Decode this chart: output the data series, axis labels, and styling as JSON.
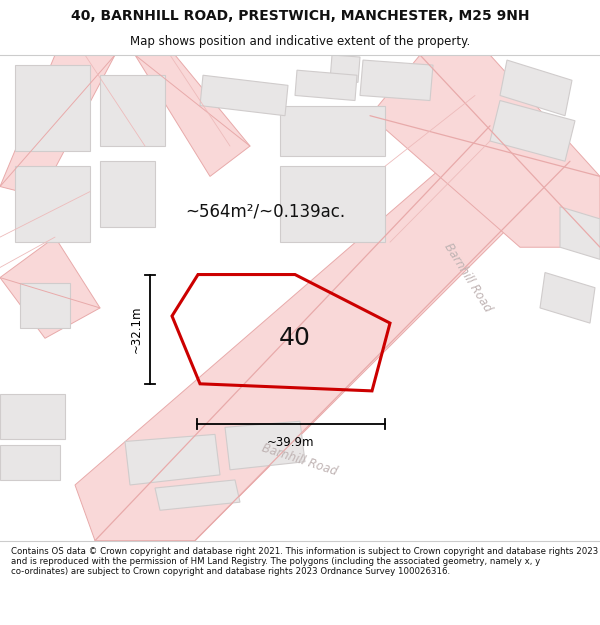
{
  "title_line1": "40, BARNHILL ROAD, PRESTWICH, MANCHESTER, M25 9NH",
  "title_line2": "Map shows position and indicative extent of the property.",
  "area_text": "~564m²/~0.139ac.",
  "label_40": "40",
  "dim_vertical": "~32.1m",
  "dim_horizontal": "~39.9m",
  "road_label_right": "Barnhill Road",
  "road_label_bottom": "Barnhill Road",
  "footer_text": "Contains OS data © Crown copyright and database right 2021. This information is subject to Crown copyright and database rights 2023 and is reproduced with the permission of HM Land Registry. The polygons (including the associated geometry, namely x, y co-ordinates) are subject to Crown copyright and database rights 2023 Ordnance Survey 100026316.",
  "map_bg": "#f7f6f6",
  "road_fill": "#f9d8d8",
  "road_edge": "#e8aaaa",
  "bld_fill": "#e8e6e6",
  "bld_edge": "#d0cccc",
  "red_color": "#cc0000",
  "footer_bg": "#ffffff",
  "title_bg": "#ffffff"
}
